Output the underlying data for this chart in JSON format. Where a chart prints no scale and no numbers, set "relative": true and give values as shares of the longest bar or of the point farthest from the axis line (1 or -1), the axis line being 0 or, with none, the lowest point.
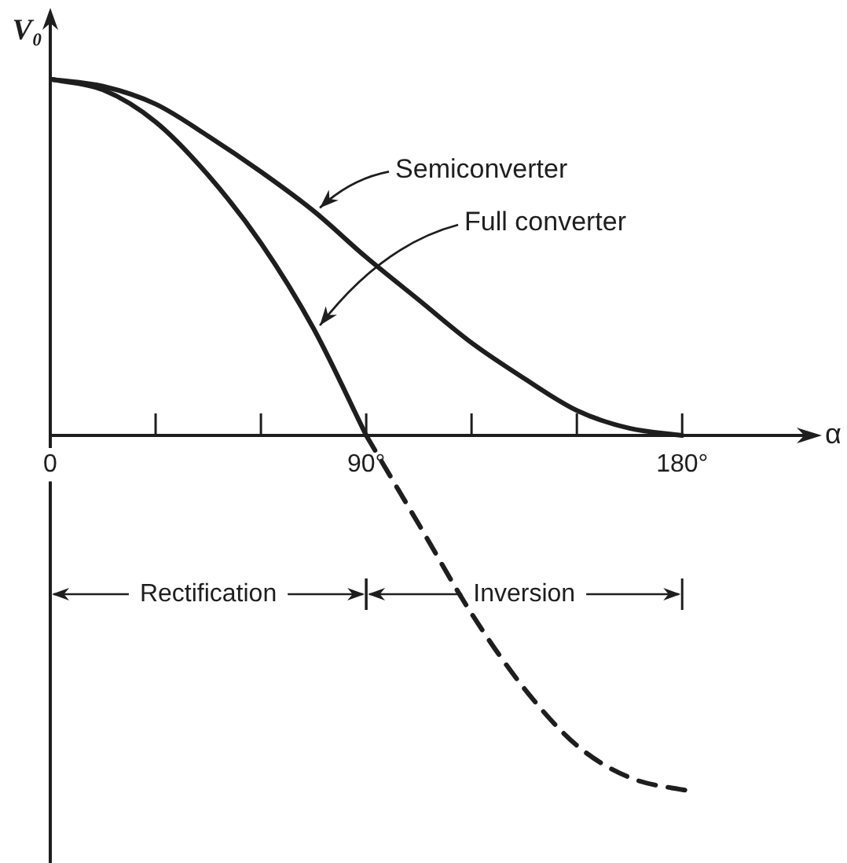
{
  "chart_data": {
    "type": "line",
    "xlabel": "α",
    "ylabel": "V₀",
    "relative": true,
    "marker": "none",
    "xlim": [
      0,
      218
    ],
    "xticks": [
      0,
      {
        "value": 30,
        "label": null
      },
      {
        "value": 60,
        "label": null
      },
      {
        "value": 90,
        "label": "90°"
      },
      {
        "value": 120,
        "label": null
      },
      {
        "value": 150,
        "label": null
      },
      {
        "value": 180,
        "label": "180°"
      }
    ],
    "series": [
      {
        "name": "Semiconverter",
        "color": "#1e1e1e",
        "x": [
          0,
          15,
          30,
          45,
          60,
          75,
          90,
          105,
          120,
          135,
          150,
          165,
          180
        ],
        "values": [
          1.0,
          0.98,
          0.93,
          0.84,
          0.74,
          0.63,
          0.5,
          0.38,
          0.26,
          0.16,
          0.07,
          0.02,
          0.0
        ]
      },
      {
        "name": "Full converter",
        "color": "#1e1e1e",
        "x": [
          0,
          15,
          30,
          45,
          60,
          75,
          90
        ],
        "values": [
          1.0,
          0.97,
          0.88,
          0.73,
          0.54,
          0.3,
          0.0
        ]
      },
      {
        "color": "#1e1e1e",
        "line_style": "dashed",
        "x": [
          90,
          105,
          120,
          135,
          150,
          165,
          183
        ],
        "values": [
          0.0,
          -0.25,
          -0.5,
          -0.71,
          -0.87,
          -0.96,
          -1.0
        ]
      }
    ],
    "annotations": [
      "Rectification",
      "Inversion"
    ]
  }
}
